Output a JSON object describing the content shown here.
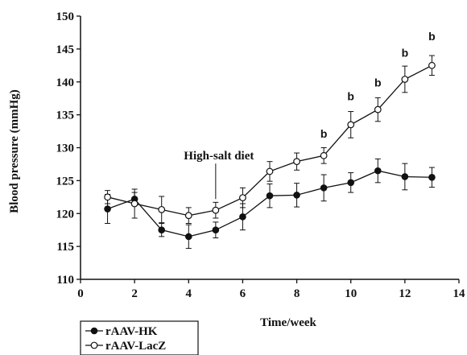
{
  "chart_data": {
    "type": "line",
    "title": "",
    "xlabel": "Time/week",
    "ylabel": "Blood pressure (mmHg)",
    "xlim": [
      0,
      14
    ],
    "ylim": [
      110,
      150
    ],
    "xticks": [
      0,
      2,
      4,
      6,
      8,
      10,
      12,
      14
    ],
    "yticks": [
      110,
      115,
      120,
      125,
      130,
      135,
      140,
      145,
      150
    ],
    "grid": false,
    "legend_position": "bottom-left",
    "x": [
      1,
      2,
      3,
      4,
      5,
      6,
      7,
      8,
      9,
      10,
      11,
      12,
      13
    ],
    "series": [
      {
        "name": "rAAV-HK",
        "marker": "filled-circle",
        "values": [
          120.7,
          122.2,
          117.5,
          116.5,
          117.5,
          119.5,
          122.7,
          122.8,
          123.9,
          124.7,
          126.5,
          125.6,
          125.5
        ],
        "errors": [
          2.2,
          1.0,
          1.0,
          1.8,
          1.2,
          2.0,
          1.8,
          1.8,
          2.0,
          1.5,
          1.8,
          2.0,
          1.5
        ]
      },
      {
        "name": "rAAV-LacZ",
        "marker": "open-circle",
        "values": [
          122.5,
          121.5,
          120.6,
          119.7,
          120.5,
          122.4,
          126.4,
          127.9,
          128.8,
          133.5,
          135.8,
          140.4,
          142.5
        ],
        "errors": [
          1.0,
          2.2,
          2.0,
          1.2,
          1.2,
          1.5,
          1.5,
          1.3,
          1.2,
          2.0,
          1.8,
          2.0,
          1.5
        ]
      }
    ],
    "annotations": [
      {
        "text": "High-salt diet",
        "x": 5,
        "y": 128.2,
        "arrow_to_y": 122.2
      },
      {
        "text": "b",
        "x": 9,
        "y": 131.5
      },
      {
        "text": "b",
        "x": 10,
        "y": 137.2
      },
      {
        "text": "b",
        "x": 11,
        "y": 139.3
      },
      {
        "text": "b",
        "x": 12,
        "y": 143.8
      },
      {
        "text": "b",
        "x": 13,
        "y": 146.3
      }
    ]
  }
}
